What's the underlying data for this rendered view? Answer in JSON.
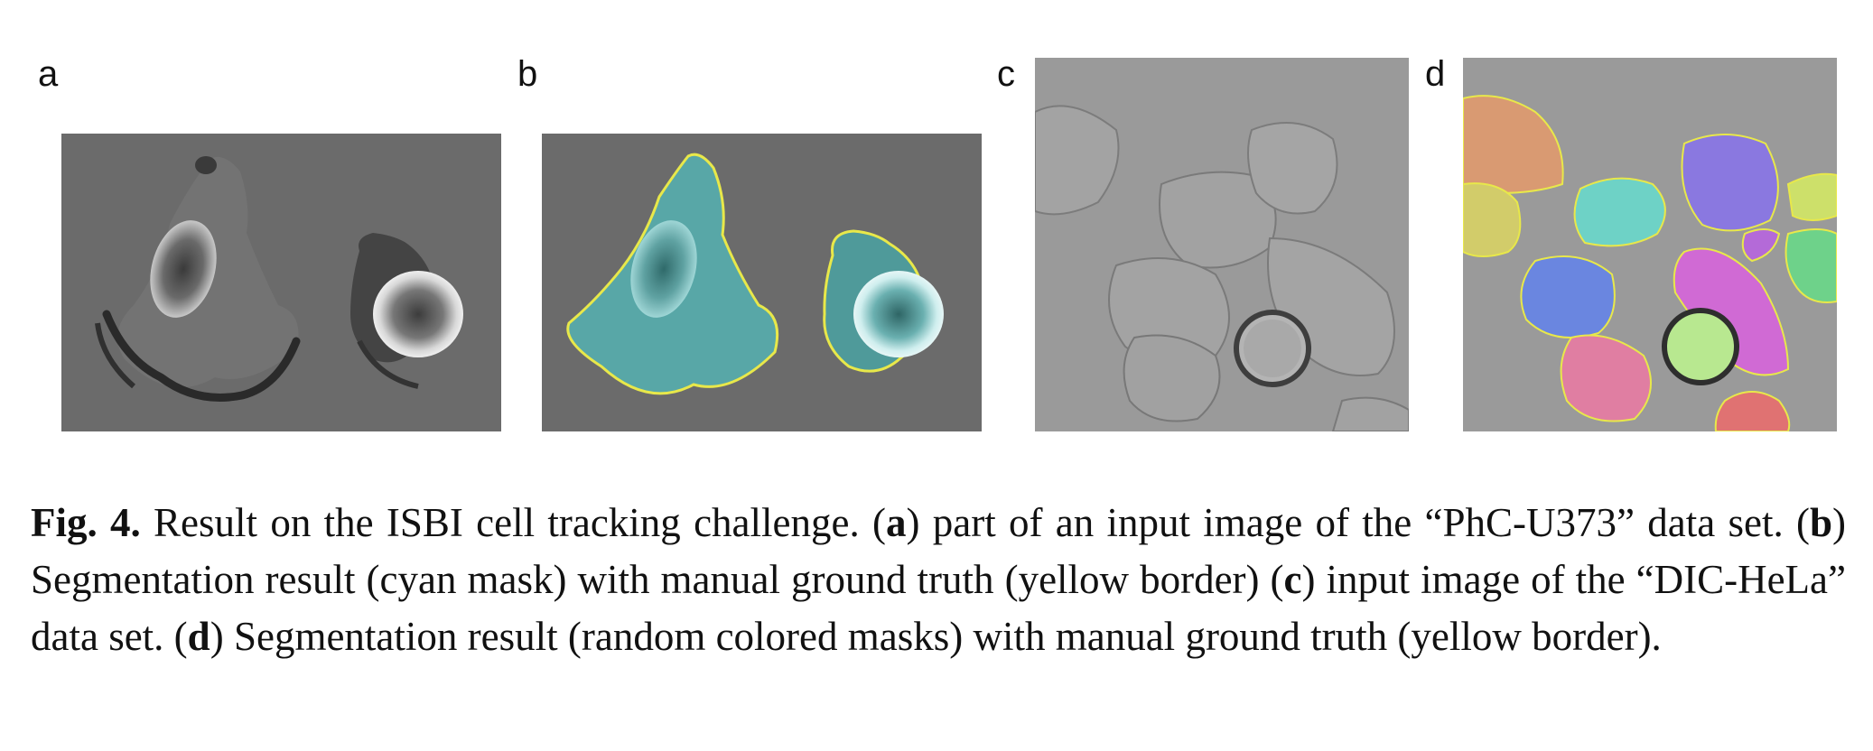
{
  "panels": {
    "a": {
      "label": "a"
    },
    "b": {
      "label": "b"
    },
    "c": {
      "label": "c"
    },
    "d": {
      "label": "d"
    }
  },
  "caption": {
    "fig": "Fig. 4.",
    "s1": " Result on the ISBI cell tracking challenge. (",
    "a": "a",
    "s2": ") part of an input image of the “PhC-U373” data set. (",
    "b": "b",
    "s3": ") Segmentation result (cyan mask) with manual ground truth (yellow border) (",
    "c": "c",
    "s4": ") input image of the “DIC-HeLa” data set. (",
    "d": "d",
    "s5": ") Segmentation result (random colored masks) with manual ground truth (yellow border)."
  }
}
